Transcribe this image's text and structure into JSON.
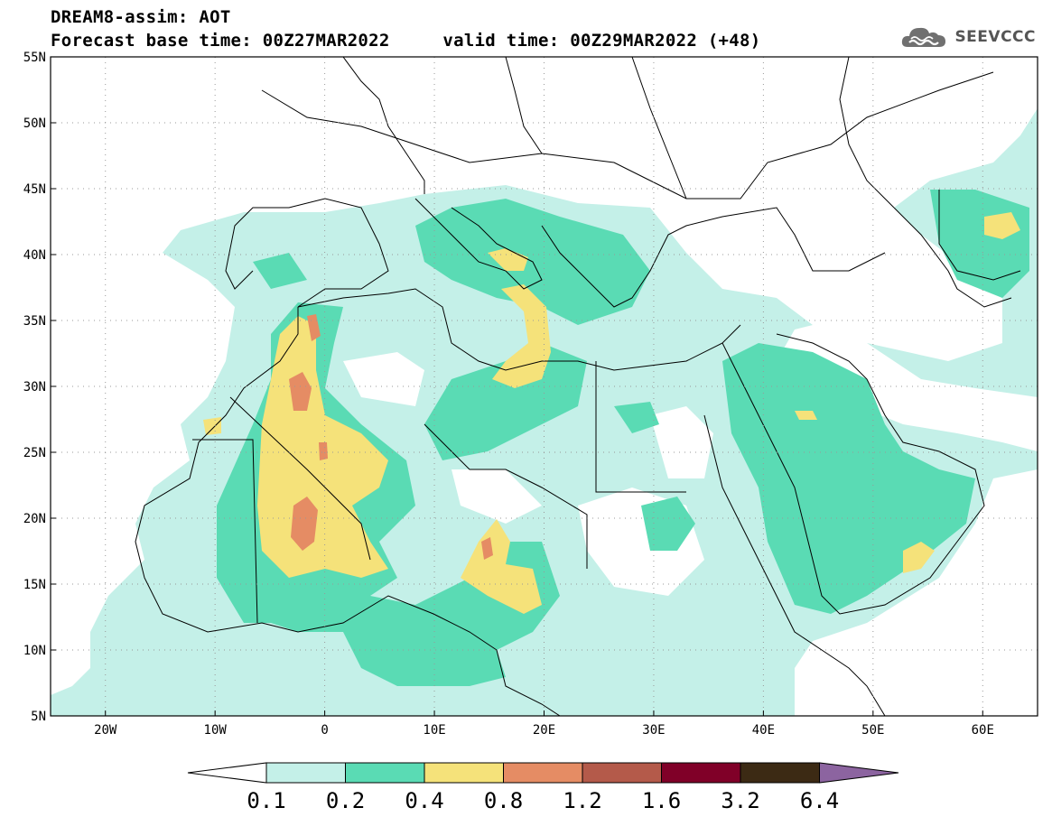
{
  "header": {
    "title_line1": "DREAM8-assim: AOT",
    "title_line2": "Forecast base time: 00Z27MAR2022     valid time: 00Z29MAR2022 (+48)",
    "brand": "SEEVCCC",
    "brand_icon": "cloud-logo-icon"
  },
  "map": {
    "extent": {
      "lon_min": -25,
      "lon_max": 65,
      "lat_min": 5,
      "lat_max": 55
    },
    "lon_labels": [
      "20W",
      "10W",
      "0",
      "10E",
      "20E",
      "30E",
      "40E",
      "50E",
      "60E"
    ],
    "lon_values": [
      -20,
      -10,
      0,
      10,
      20,
      30,
      40,
      50,
      60
    ],
    "lat_labels": [
      "55N",
      "50N",
      "45N",
      "40N",
      "35N",
      "30N",
      "25N",
      "20N",
      "15N",
      "10N",
      "5N"
    ],
    "lat_values": [
      55,
      50,
      45,
      40,
      35,
      30,
      25,
      20,
      15,
      10,
      5
    ],
    "grid": true,
    "field": "AOT"
  },
  "colorbar": {
    "labels": [
      "0.1",
      "0.2",
      "0.4",
      "0.8",
      "1.2",
      "1.6",
      "3.2",
      "6.4"
    ],
    "colors": [
      "#c4f0e8",
      "#5adbb4",
      "#f5e27a",
      "#e58c64",
      "#b45a4a",
      "#800028",
      "#3c2a14",
      "#8c64a0"
    ]
  }
}
